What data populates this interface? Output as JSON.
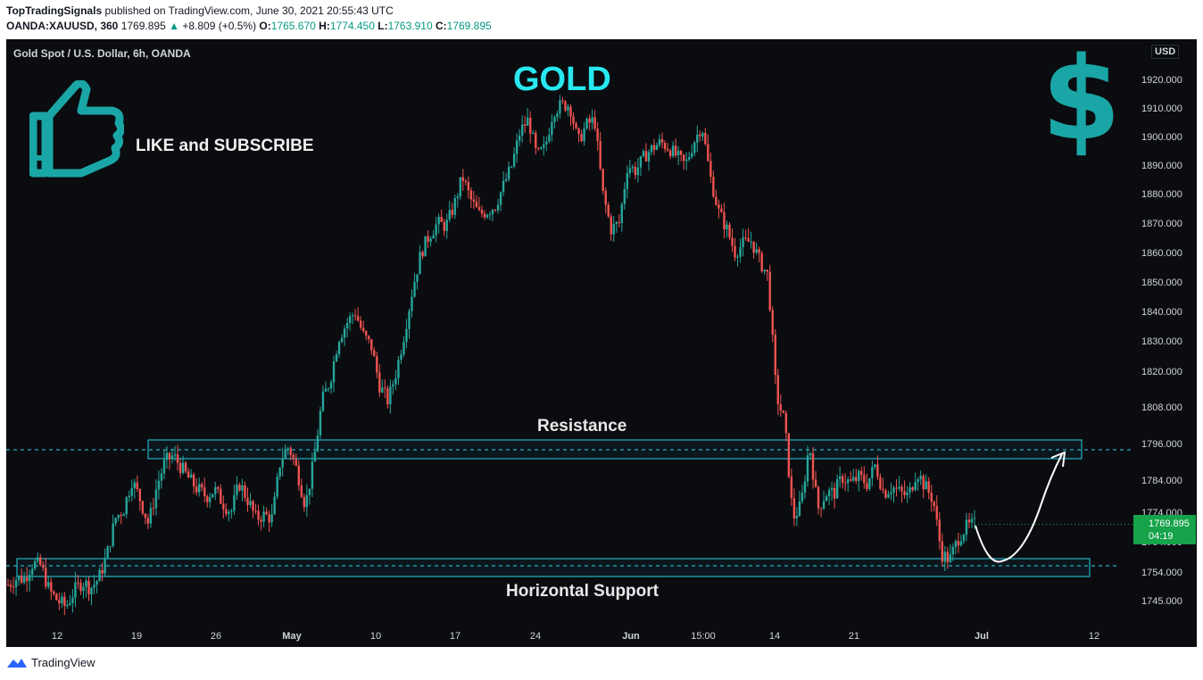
{
  "header": {
    "publisher": "TopTradingSignals",
    "published_text": "published on TradingView.com, June 30, 2021 20:55:43 UTC",
    "symbol": "OANDA:XAUUSD, 360",
    "last": "1769.895",
    "change": "+8.809 (+0.5%)",
    "o_label": "O:",
    "o_value": "1765.670",
    "h_label": "H:",
    "h_value": "1774.450",
    "l_label": "L:",
    "l_value": "1763.910",
    "c_label": "C:",
    "c_value": "1769.895"
  },
  "chart_title": "Gold Spot / U.S. Dollar, 6h, OANDA",
  "annotations": {
    "gold": "GOLD",
    "like": "LIKE and SUBSCRIBE",
    "resistance": "Resistance",
    "support": "Horizontal Support",
    "dollar": "$"
  },
  "price_scale": {
    "currency": "USD",
    "current_price": "1769.895",
    "countdown": "04:19"
  },
  "footer": {
    "brand": "TradingView"
  },
  "colors": {
    "background": "#0b0c10",
    "up": "#26a69a",
    "down": "#ef5350",
    "zone": "#27d3e8",
    "title": "#27e8f0",
    "thumb": "#1aa6a6",
    "price_badge": "#16a34a"
  },
  "icons": [
    "thumbs-up-icon",
    "dollar-sign-icon",
    "tradingview-logo-icon",
    "arrow-icon"
  ],
  "chart_data": {
    "type": "candlestick",
    "title": "Gold Spot / U.S. Dollar, 6h, OANDA",
    "y_ticks": [
      "1920.000",
      "1910.000",
      "1900.000",
      "1890.000",
      "1880.000",
      "1870.000",
      "1860.000",
      "1850.000",
      "1840.000",
      "1830.000",
      "1820.000",
      "1808.000",
      "1796.000",
      "1784.000",
      "1774.000",
      "1764.000",
      "1754.000",
      "1745.000"
    ],
    "x_ticks": [
      "12",
      "19",
      "26",
      "May",
      "10",
      "17",
      "24",
      "Jun",
      "15:00",
      "14",
      "21",
      "Jul",
      "12"
    ],
    "resistance_zone": [
      1792,
      1798
    ],
    "support_zone": [
      1754,
      1759
    ],
    "current_price": 1769.895,
    "path": [
      1750,
      1752,
      1752,
      1757,
      1756,
      1748,
      1745,
      1743,
      1748,
      1751,
      1749,
      1752,
      1760,
      1772,
      1775,
      1784,
      1778,
      1770,
      1782,
      1790,
      1792,
      1788,
      1784,
      1781,
      1779,
      1781,
      1777,
      1774,
      1783,
      1778,
      1772,
      1773,
      1772,
      1791,
      1795,
      1787,
      1776,
      1790,
      1810,
      1817,
      1831,
      1836,
      1840,
      1832,
      1828,
      1815,
      1810,
      1820,
      1833,
      1848,
      1860,
      1866,
      1870,
      1869,
      1876,
      1886,
      1878,
      1873,
      1874,
      1876,
      1883,
      1890,
      1902,
      1906,
      1893,
      1896,
      1909,
      1911,
      1911,
      1898,
      1904,
      1906,
      1880,
      1868,
      1870,
      1890,
      1888,
      1893,
      1896,
      1898,
      1896,
      1893,
      1890,
      1898,
      1904,
      1886,
      1874,
      1868,
      1860,
      1863,
      1864,
      1857,
      1852,
      1812,
      1803,
      1772,
      1776,
      1796,
      1775,
      1780,
      1780,
      1785,
      1783,
      1785,
      1783,
      1789,
      1780,
      1782,
      1780,
      1779,
      1787,
      1782,
      1778,
      1760,
      1758,
      1765,
      1769,
      1769.895
    ]
  }
}
